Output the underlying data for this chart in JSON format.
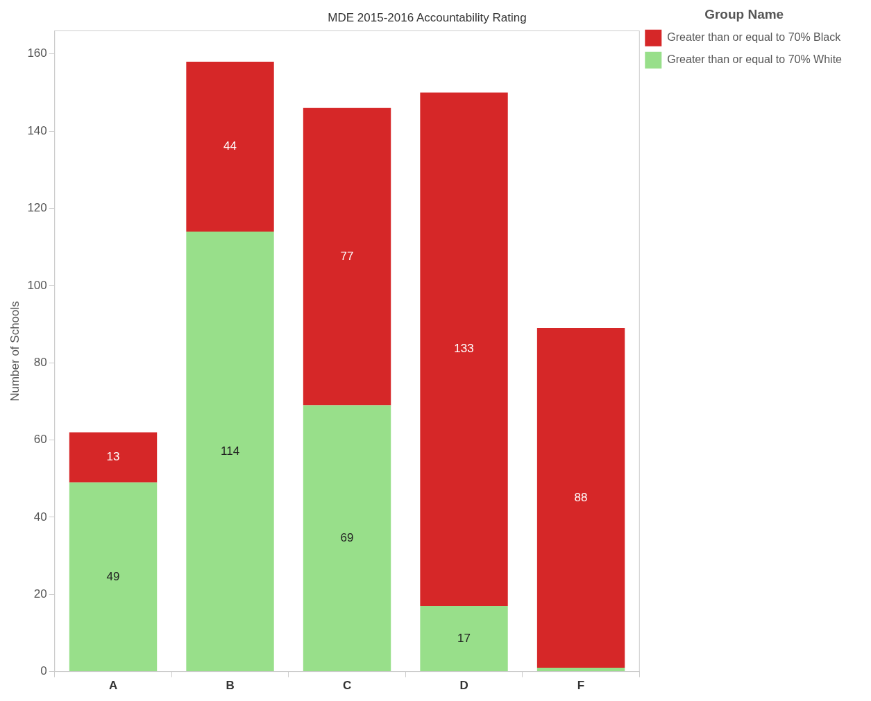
{
  "chart_data": {
    "type": "bar",
    "title": "MDE 2015-2016 Accountability Rating",
    "ylabel": "Number of Schools",
    "legend_title": "Group Name",
    "categories": [
      "A",
      "B",
      "C",
      "D",
      "F"
    ],
    "stacked": true,
    "ylim": [
      0,
      166
    ],
    "yticks": [
      0,
      20,
      40,
      60,
      80,
      100,
      120,
      140,
      160
    ],
    "grid": false,
    "legend": "top right",
    "series": [
      {
        "name": "Greater than or equal to 70% White",
        "color": "#98df8a",
        "values": [
          49,
          114,
          69,
          17,
          1
        ],
        "value_labels": [
          "49",
          "114",
          "69",
          "17",
          null
        ]
      },
      {
        "name": "Greater than or equal to 70% Black",
        "color": "#d62728",
        "values": [
          13,
          44,
          77,
          133,
          88
        ],
        "value_labels": [
          "13",
          "44",
          "77",
          "133",
          "88"
        ]
      }
    ]
  }
}
